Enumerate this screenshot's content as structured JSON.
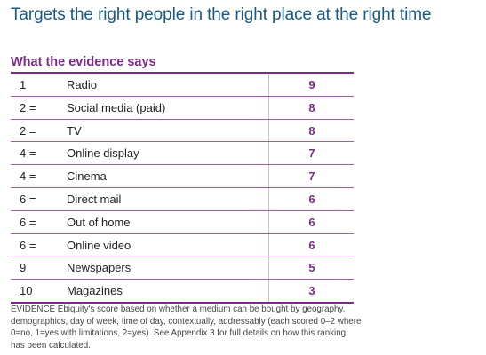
{
  "title": "Targets the right people in the right place at the right time",
  "section_heading": "What the evidence says",
  "table": {
    "rows": [
      {
        "rank": "1",
        "medium": "Radio",
        "score": "9"
      },
      {
        "rank": "2 =",
        "medium": "Social media (paid)",
        "score": "8"
      },
      {
        "rank": "2 =",
        "medium": "TV",
        "score": "8"
      },
      {
        "rank": "4 =",
        "medium": "Online display",
        "score": "7"
      },
      {
        "rank": "4 =",
        "medium": "Cinema",
        "score": "7"
      },
      {
        "rank": "6 =",
        "medium": "Direct mail",
        "score": "6"
      },
      {
        "rank": "6 =",
        "medium": "Out of home",
        "score": "6"
      },
      {
        "rank": "6 =",
        "medium": "Online video",
        "score": "6"
      },
      {
        "rank": "9",
        "medium": "Newspapers",
        "score": "5"
      },
      {
        "rank": "10",
        "medium": "Magazines",
        "score": "3"
      }
    ]
  },
  "footnote": "EVIDENCE Ebiquity's score based on whether a medium can be bought by geography, demographics, day of week, time of day, contextually, addressably (each scored 0–2 where 0=no, 1=yes with limitations, 2=yes).  See Appendix 3 for full details on how this ranking has been calculated.",
  "chart_data": {
    "type": "table",
    "columns": [
      "rank",
      "medium",
      "score"
    ],
    "rows": [
      [
        "1",
        "Radio",
        9
      ],
      [
        "2 =",
        "Social media (paid)",
        8
      ],
      [
        "2 =",
        "TV",
        8
      ],
      [
        "4 =",
        "Online display",
        7
      ],
      [
        "4 =",
        "Cinema",
        7
      ],
      [
        "6 =",
        "Direct mail",
        6
      ],
      [
        "6 =",
        "Out of home",
        6
      ],
      [
        "6 =",
        "Online video",
        6
      ],
      [
        "9",
        "Newspapers",
        5
      ],
      [
        "10",
        "Magazines",
        3
      ]
    ]
  },
  "colors": {
    "title": "#1a5a80",
    "accent": "#7a2d86"
  }
}
